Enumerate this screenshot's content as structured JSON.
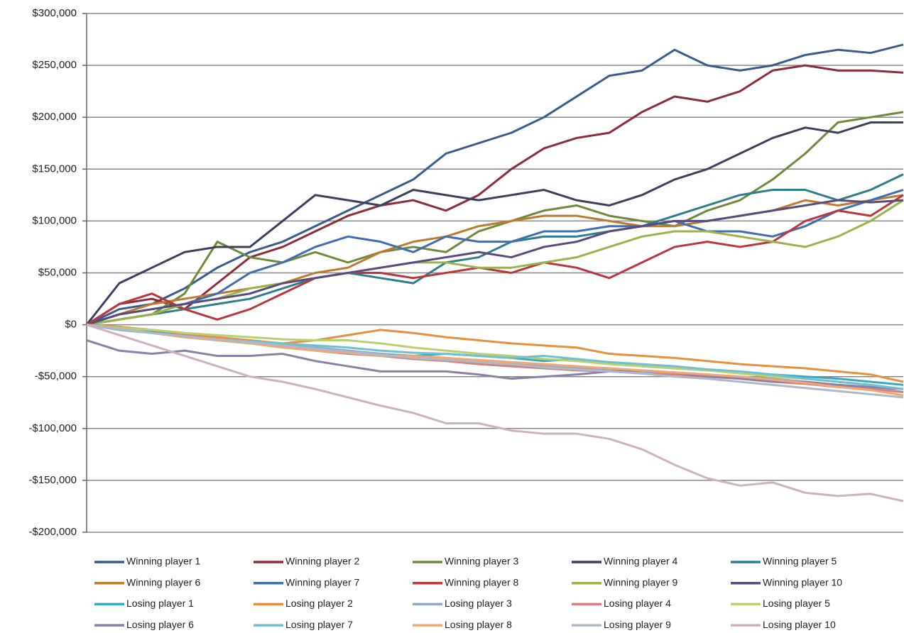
{
  "chart_data": {
    "type": "line",
    "categories": [
      null,
      null,
      null,
      null,
      null,
      null,
      null,
      null,
      null,
      null,
      null,
      null,
      null,
      null,
      null,
      null,
      null,
      null,
      null,
      null,
      null,
      null,
      null,
      null,
      null,
      null
    ],
    "ylim": [
      -200000,
      300000
    ],
    "yticks": [
      {
        "value": -200000,
        "label": "-$200,000"
      },
      {
        "value": -150000,
        "label": "-$150,000"
      },
      {
        "value": -100000,
        "label": "-$100,000"
      },
      {
        "value": -50000,
        "label": "-$50,000"
      },
      {
        "value": 0,
        "label": "$0"
      },
      {
        "value": 50000,
        "label": "$50,000"
      },
      {
        "value": 100000,
        "label": "$100,000"
      },
      {
        "value": 150000,
        "label": "$150,000"
      },
      {
        "value": 200000,
        "label": "$200,000"
      },
      {
        "value": 250000,
        "label": "$250,000"
      },
      {
        "value": 300000,
        "label": "$300,000"
      }
    ],
    "grid": true,
    "legend": "bottom",
    "series": [
      {
        "name": "Winning player 1",
        "color": "#3b5b8f",
        "values": [
          0,
          15000,
          20000,
          35000,
          55000,
          70000,
          80000,
          95000,
          110000,
          125000,
          140000,
          165000,
          175000,
          185000,
          200000,
          220000,
          240000,
          245000,
          265000,
          250000,
          245000,
          250000,
          260000,
          265000,
          262000,
          270000
        ]
      },
      {
        "name": "Winning player 2",
        "color": "#8b2e3a",
        "values": [
          0,
          20000,
          25000,
          15000,
          40000,
          65000,
          75000,
          90000,
          105000,
          115000,
          120000,
          110000,
          125000,
          150000,
          170000,
          180000,
          185000,
          205000,
          220000,
          215000,
          225000,
          245000,
          250000,
          245000,
          245000,
          243000
        ]
      },
      {
        "name": "Winning player 3",
        "color": "#6e8a3a",
        "values": [
          0,
          5000,
          10000,
          30000,
          80000,
          65000,
          60000,
          70000,
          60000,
          70000,
          75000,
          70000,
          90000,
          100000,
          110000,
          115000,
          105000,
          100000,
          95000,
          110000,
          120000,
          140000,
          165000,
          195000,
          200000,
          205000
        ]
      },
      {
        "name": "Winning player 4",
        "color": "#3e3e5e",
        "values": [
          0,
          40000,
          55000,
          70000,
          75000,
          75000,
          100000,
          125000,
          120000,
          115000,
          130000,
          125000,
          120000,
          125000,
          130000,
          120000,
          115000,
          125000,
          140000,
          150000,
          165000,
          180000,
          190000,
          185000,
          195000,
          195000
        ]
      },
      {
        "name": "Winning player 5",
        "color": "#2f7f8a",
        "values": [
          0,
          5000,
          10000,
          15000,
          20000,
          25000,
          35000,
          45000,
          50000,
          45000,
          40000,
          60000,
          65000,
          80000,
          85000,
          85000,
          90000,
          95000,
          105000,
          115000,
          125000,
          130000,
          130000,
          120000,
          130000,
          145000
        ]
      },
      {
        "name": "Winning player 6",
        "color": "#c07a30",
        "values": [
          0,
          10000,
          20000,
          25000,
          30000,
          35000,
          40000,
          50000,
          55000,
          70000,
          80000,
          85000,
          95000,
          100000,
          105000,
          105000,
          100000,
          95000,
          95000,
          100000,
          105000,
          110000,
          120000,
          115000,
          120000,
          125000
        ]
      },
      {
        "name": "Winning player 7",
        "color": "#3f6fb0",
        "values": [
          0,
          10000,
          15000,
          20000,
          30000,
          50000,
          60000,
          75000,
          85000,
          80000,
          70000,
          85000,
          80000,
          80000,
          90000,
          90000,
          95000,
          95000,
          100000,
          90000,
          90000,
          85000,
          95000,
          110000,
          120000,
          130000
        ]
      },
      {
        "name": "Winning player 8",
        "color": "#b8383e",
        "values": [
          0,
          20000,
          30000,
          15000,
          5000,
          15000,
          30000,
          45000,
          50000,
          50000,
          45000,
          50000,
          55000,
          50000,
          60000,
          55000,
          45000,
          60000,
          75000,
          80000,
          75000,
          80000,
          100000,
          110000,
          105000,
          125000
        ]
      },
      {
        "name": "Winning player 9",
        "color": "#9ab34a",
        "values": [
          0,
          5000,
          10000,
          20000,
          25000,
          35000,
          40000,
          45000,
          50000,
          55000,
          60000,
          60000,
          55000,
          55000,
          60000,
          65000,
          75000,
          85000,
          90000,
          90000,
          85000,
          80000,
          75000,
          85000,
          100000,
          120000
        ]
      },
      {
        "name": "Winning player 10",
        "color": "#5a4a80",
        "values": [
          0,
          10000,
          15000,
          20000,
          25000,
          30000,
          40000,
          45000,
          50000,
          55000,
          60000,
          65000,
          70000,
          65000,
          75000,
          80000,
          90000,
          95000,
          100000,
          100000,
          105000,
          110000,
          115000,
          120000,
          118000,
          120000
        ]
      },
      {
        "name": "Losing player 1",
        "color": "#3aa8c0",
        "values": [
          0,
          -3000,
          -6000,
          -10000,
          -13000,
          -16000,
          -19000,
          -22000,
          -25000,
          -28000,
          -30000,
          -28000,
          -30000,
          -32000,
          -35000,
          -33000,
          -37000,
          -40000,
          -42000,
          -44000,
          -46000,
          -48000,
          -50000,
          -52000,
          -55000,
          -58000
        ]
      },
      {
        "name": "Losing player 2",
        "color": "#e89040",
        "values": [
          0,
          -2000,
          -5000,
          -8000,
          -12000,
          -15000,
          -18000,
          -15000,
          -10000,
          -5000,
          -8000,
          -12000,
          -15000,
          -18000,
          -20000,
          -22000,
          -28000,
          -30000,
          -32000,
          -35000,
          -38000,
          -40000,
          -42000,
          -45000,
          -48000,
          -55000
        ]
      },
      {
        "name": "Losing player 3",
        "color": "#8ea6d0",
        "values": [
          0,
          -4000,
          -8000,
          -12000,
          -15000,
          -18000,
          -20000,
          -22000,
          -25000,
          -28000,
          -30000,
          -32000,
          -35000,
          -37000,
          -40000,
          -42000,
          -44000,
          -45000,
          -46000,
          -48000,
          -50000,
          -52000,
          -55000,
          -58000,
          -60000,
          -65000
        ]
      },
      {
        "name": "Losing player 4",
        "color": "#d88080",
        "values": [
          0,
          -5000,
          -8000,
          -10000,
          -14000,
          -18000,
          -20000,
          -25000,
          -28000,
          -30000,
          -33000,
          -35000,
          -38000,
          -40000,
          -42000,
          -44000,
          -45000,
          -47000,
          -48000,
          -50000,
          -52000,
          -55000,
          -57000,
          -60000,
          -62000,
          -65000
        ]
      },
      {
        "name": "Losing player 5",
        "color": "#b8d070",
        "values": [
          0,
          -3000,
          -5000,
          -8000,
          -10000,
          -12000,
          -14000,
          -15000,
          -15000,
          -18000,
          -22000,
          -25000,
          -28000,
          -30000,
          -33000,
          -35000,
          -38000,
          -40000,
          -42000,
          -44000,
          -47000,
          -50000,
          -52000,
          -55000,
          -58000,
          -62000
        ]
      },
      {
        "name": "Losing player 6",
        "color": "#8a80a8",
        "values": [
          -15000,
          -25000,
          -28000,
          -25000,
          -30000,
          -30000,
          -28000,
          -35000,
          -40000,
          -45000,
          -45000,
          -45000,
          -48000,
          -52000,
          -50000,
          -48000,
          -45000,
          -44000,
          -46000,
          -50000,
          -52000,
          -55000,
          -55000,
          -58000,
          -60000,
          -62000
        ]
      },
      {
        "name": "Losing player 7",
        "color": "#70c0d0",
        "values": [
          0,
          -5000,
          -8000,
          -12000,
          -14000,
          -16000,
          -18000,
          -20000,
          -22000,
          -25000,
          -27000,
          -28000,
          -30000,
          -32000,
          -30000,
          -33000,
          -36000,
          -38000,
          -40000,
          -43000,
          -45000,
          -48000,
          -52000,
          -55000,
          -58000,
          -62000
        ]
      },
      {
        "name": "Losing player 8",
        "color": "#f0a870",
        "values": [
          0,
          -4000,
          -8000,
          -12000,
          -15000,
          -18000,
          -22000,
          -25000,
          -27000,
          -30000,
          -30000,
          -32000,
          -34000,
          -36000,
          -38000,
          -40000,
          -42000,
          -44000,
          -46000,
          -48000,
          -50000,
          -53000,
          -56000,
          -60000,
          -63000,
          -68000
        ]
      },
      {
        "name": "Losing player 9",
        "color": "#b0b8c8",
        "values": [
          0,
          -4000,
          -8000,
          -11000,
          -14000,
          -17000,
          -20000,
          -23000,
          -26000,
          -29000,
          -32000,
          -34000,
          -36000,
          -38000,
          -41000,
          -43000,
          -45000,
          -47000,
          -50000,
          -52000,
          -55000,
          -58000,
          -61000,
          -64000,
          -67000,
          -70000
        ]
      },
      {
        "name": "Losing player 10",
        "color": "#d0b0c0",
        "values": [
          0,
          -10000,
          -20000,
          -30000,
          -40000,
          -50000,
          -55000,
          -62000,
          -70000,
          -78000,
          -85000,
          -95000,
          -95000,
          -102000,
          -105000,
          -105000,
          -110000,
          -120000,
          -135000,
          -148000,
          -155000,
          -152000,
          -162000,
          -165000,
          -163000,
          -170000
        ]
      }
    ]
  }
}
